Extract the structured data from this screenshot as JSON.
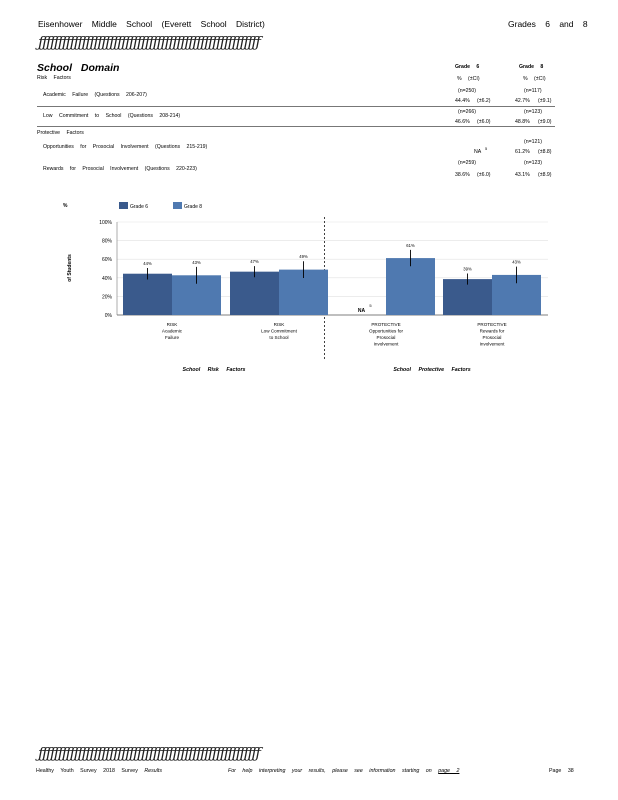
{
  "header": {
    "school": "Eisenhower Middle School (Everett School District)",
    "grades": "Grades 6 and 8",
    "rule": "ƒƒƒƒƒƒƒƒƒƒƒƒƒƒƒƒƒƒƒƒƒƒƒƒƒƒƒƒƒƒƒƒƒƒƒƒƒƒƒƒƒƒƒƒƒƒƒƒƒƒƒƒƒƒƒƒ"
  },
  "domain_title": "School Domain",
  "table": {
    "col_grade6": "Grade 6",
    "col_grade8": "Grade 8",
    "col_sub": "% (±CI)",
    "risk_heading": "Risk Factors",
    "protective_heading": "Protective Factors",
    "rows": [
      {
        "label": "Academic Failure (Questions 206-207)",
        "n6": "(n=250)",
        "n8": "(n=117)",
        "v6": "44.4%",
        "ci6": "(±6.2)",
        "v8": "42.7%",
        "ci8": "(±9.1)"
      },
      {
        "label": "Low Commitment to School (Questions 208-214)",
        "n6": "(n=266)",
        "n8": "(n=123)",
        "v6": "46.6%",
        "ci6": "(±6.0)",
        "v8": "48.8%",
        "ci8": "(±9.0)"
      },
      {
        "label": "Opportunities for Prosocial Involvement (Questions 215-219)",
        "n6": "",
        "n8": "(n=121)",
        "v6": "NA",
        "ci6": "",
        "v8": "61.2%",
        "ci8": "(±8.8)",
        "note6": "5"
      },
      {
        "label": "Rewards for Prosocial Involvement (Questions 220-223)",
        "n6": "(n=259)",
        "n8": "(n=123)",
        "v6": "38.6%",
        "ci6": "(±6.0)",
        "v8": "43.1%",
        "ci8": "(±8.9)"
      }
    ]
  },
  "chart_data": {
    "type": "bar",
    "ylabel_top": "%",
    "ylabel": "of Students",
    "ylim": [
      0,
      100
    ],
    "yticks": [
      "0%",
      "20%",
      "40%",
      "60%",
      "80%",
      "100%"
    ],
    "legend": [
      "Grade 6",
      "Grade 8"
    ],
    "colors": [
      "#3a5a8c",
      "#4f79b0"
    ],
    "categories": [
      [
        "RISK",
        "Academic",
        "Failure"
      ],
      [
        "RISK",
        "Low Commitment",
        "to School"
      ],
      [
        "PROTECTIVE",
        "Opportunities for",
        "Prosocial",
        "Involvement"
      ],
      [
        "PROTECTIVE",
        "Rewards for",
        "Prosocial",
        "Involvement"
      ]
    ],
    "series": [
      {
        "name": "Grade 6",
        "values": [
          44.4,
          46.6,
          null,
          38.6
        ],
        "ci": [
          6.2,
          6.0,
          null,
          6.0
        ],
        "labels": [
          "44%",
          "47%",
          "NA",
          "39%"
        ]
      },
      {
        "name": "Grade 8",
        "values": [
          42.7,
          48.8,
          61.2,
          43.1
        ],
        "ci": [
          9.1,
          9.0,
          8.8,
          8.9
        ],
        "labels": [
          "43%",
          "49%",
          "61%",
          "43%"
        ]
      }
    ],
    "na_note": "5",
    "group_labels": [
      "School Risk Factors",
      "School Protective Factors"
    ]
  },
  "footer": {
    "rule": "ƒƒƒƒƒƒƒƒƒƒƒƒƒƒƒƒƒƒƒƒƒƒƒƒƒƒƒƒƒƒƒƒƒƒƒƒƒƒƒƒƒƒƒƒƒƒƒƒƒƒƒƒƒƒƒƒ",
    "survey": "Healthy Youth Survey 2018 Survey",
    "results": "Results",
    "help": "For help interpreting your results, please see information starting on",
    "help_page_word": "page",
    "help_page_num": "2",
    "page_label": "Page",
    "page_num": "38"
  }
}
